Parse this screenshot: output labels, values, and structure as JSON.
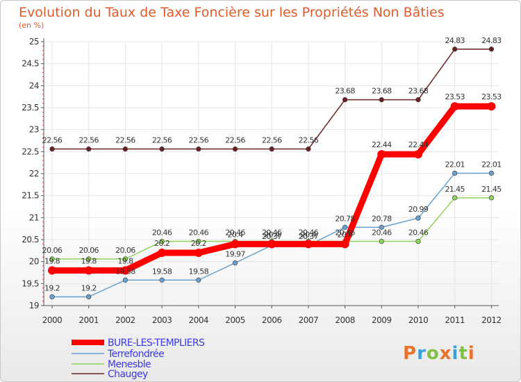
{
  "chart_data": {
    "type": "line",
    "title": "Evolution du Taux de Taxe Foncière sur les Propriétés Non Bâties",
    "unit_label": "(en %)",
    "xlabel": "",
    "ylabel": "",
    "ylim": [
      19,
      25
    ],
    "y_ticks": [
      "19",
      "19.5",
      "20",
      "20.5",
      "21",
      "21.5",
      "22",
      "22.5",
      "23",
      "23.5",
      "24",
      "24.5",
      "25"
    ],
    "categories": [
      "2000",
      "2001",
      "2002",
      "2003",
      "2004",
      "2005",
      "2006",
      "2007",
      "2008",
      "2009",
      "2010",
      "2011",
      "2012"
    ],
    "series": [
      {
        "name": "Chaugey",
        "color": "#6b2121",
        "values": [
          22.56,
          22.56,
          22.56,
          22.56,
          22.56,
          22.56,
          22.56,
          22.56,
          23.68,
          23.68,
          23.68,
          24.83,
          24.83
        ],
        "labels": [
          "22.56",
          "22.56",
          "22.56",
          "22.56",
          "22.56",
          "22.56",
          "22.56",
          "22.56",
          "23.68",
          "23.68",
          "23.68",
          "24.83",
          "24.83"
        ]
      },
      {
        "name": "Menesble",
        "color": "#8fd35a",
        "values": [
          20.06,
          20.06,
          20.06,
          20.46,
          20.46,
          20.46,
          20.46,
          20.46,
          20.46,
          20.46,
          20.46,
          21.45,
          21.45
        ],
        "labels": [
          "20.06",
          "20.06",
          "20.06",
          "20.46",
          "20.46",
          "20.46",
          "20.46",
          "20.46",
          "20.46",
          "20.46",
          "20.46",
          "21.45",
          "21.45"
        ]
      },
      {
        "name": "Terrefondrée",
        "color": "#6aa0cf",
        "values": [
          19.2,
          19.2,
          19.58,
          19.58,
          19.58,
          19.97,
          20.37,
          20.37,
          20.78,
          20.78,
          20.99,
          22.01,
          22.01
        ],
        "labels": [
          "19.2",
          "19.2",
          "19.58",
          "19.58",
          "19.58",
          "19.97",
          "20.37",
          "20.37",
          "20.78",
          "20.78",
          "20.99",
          "22.01",
          "22.01"
        ]
      },
      {
        "name": "BURE-LES-TEMPLIERS",
        "color": "#ff0000",
        "values": [
          19.8,
          19.8,
          19.8,
          20.2,
          20.2,
          20.4,
          20.4,
          20.4,
          20.4,
          22.44,
          22.44,
          23.53,
          23.53
        ],
        "labels": [
          "19.8",
          "19.8",
          "19.8",
          "20.2",
          "20.2",
          "20.4",
          "20.4",
          "20.4",
          "20.4",
          "22.44",
          "22.44",
          "23.53",
          "23.53"
        ]
      }
    ],
    "legend": [
      "BURE-LES-TEMPLIERS",
      "Terrefondrée",
      "Menesble",
      "Chaugey"
    ],
    "legend_colors": [
      "#ff0000",
      "#6aa0cf",
      "#8fd35a",
      "#6b2121"
    ],
    "legend_text_color": "#3a3ae0",
    "logo": "Proxiti",
    "logo_colors": [
      "#e9732a",
      "#3aa0dd",
      "#7fc241",
      "#e9732a",
      "#3aa0dd",
      "#7fc241",
      "#e9732a"
    ]
  }
}
